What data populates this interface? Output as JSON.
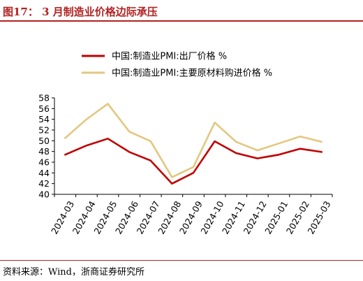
{
  "figure": {
    "title": "图17： 3 月制造业价格边际承压",
    "source": "资料来源：Wind，浙商证券研究所"
  },
  "chart_data": {
    "type": "line",
    "categories": [
      "2024-03",
      "2024-04",
      "2024-05",
      "2024-06",
      "2024-07",
      "2024-08",
      "2024-09",
      "2024-10",
      "2024-11",
      "2024-12",
      "2025-01",
      "2025-02",
      "2025-03"
    ],
    "series": [
      {
        "name": "中国:制造业PMI:出厂价格 %",
        "color": "#c00000",
        "values": [
          47.4,
          49.1,
          50.4,
          47.9,
          46.3,
          42.0,
          44.0,
          49.9,
          47.7,
          46.7,
          47.4,
          48.5,
          47.9
        ]
      },
      {
        "name": "中国:制造业PMI:主要原材料购进价格 %",
        "color": "#e3c77e",
        "values": [
          50.5,
          54.0,
          56.9,
          51.7,
          49.9,
          43.2,
          45.1,
          53.4,
          49.8,
          48.2,
          49.5,
          50.8,
          49.8
        ]
      }
    ],
    "yticks": [
      40,
      42,
      44,
      46,
      48,
      50,
      52,
      54,
      56,
      58
    ],
    "ylim": [
      40,
      58
    ],
    "grid": false,
    "legend": "top-center"
  }
}
